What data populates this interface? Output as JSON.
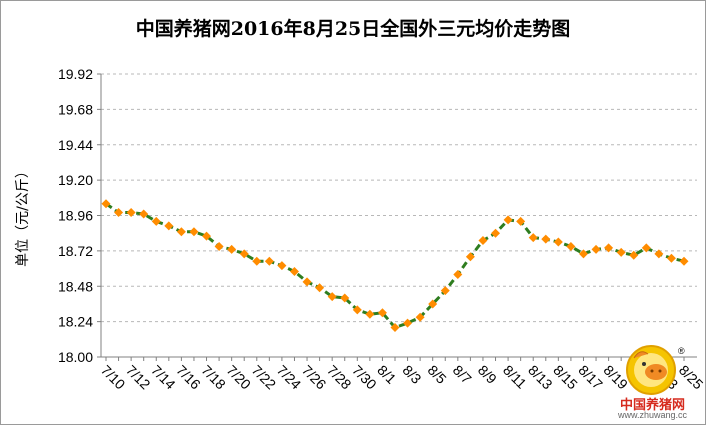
{
  "chart_data": {
    "type": "line",
    "title": "中国养猪网2016年8月25日全国外三元均价走势图",
    "ylabel": "单位（元/公斤）",
    "ylim": [
      18.0,
      19.92
    ],
    "yticks": [
      "18.00",
      "18.24",
      "18.48",
      "18.72",
      "18.96",
      "19.20",
      "19.44",
      "19.68",
      "19.92"
    ],
    "x_tick_labels": [
      "7/10",
      "7/12",
      "7/14",
      "7/16",
      "7/18",
      "7/20",
      "7/22",
      "7/24",
      "7/26",
      "7/28",
      "7/30",
      "8/1",
      "8/3",
      "8/5",
      "8/7",
      "8/9",
      "8/11",
      "8/13",
      "8/15",
      "8/17",
      "8/19",
      "8/21",
      "8/23",
      "8/25"
    ],
    "x": [
      "7/10",
      "7/11",
      "7/12",
      "7/13",
      "7/14",
      "7/15",
      "7/16",
      "7/17",
      "7/18",
      "7/19",
      "7/20",
      "7/21",
      "7/22",
      "7/23",
      "7/24",
      "7/25",
      "7/26",
      "7/27",
      "7/28",
      "7/29",
      "7/30",
      "7/31",
      "8/1",
      "8/2",
      "8/3",
      "8/4",
      "8/5",
      "8/6",
      "8/7",
      "8/8",
      "8/9",
      "8/10",
      "8/11",
      "8/12",
      "8/13",
      "8/14",
      "8/15",
      "8/16",
      "8/17",
      "8/18",
      "8/19",
      "8/20",
      "8/21",
      "8/22",
      "8/23",
      "8/24",
      "8/25"
    ],
    "series": [
      {
        "values": [
          19.04,
          18.98,
          18.98,
          18.97,
          18.92,
          18.89,
          18.85,
          18.85,
          18.82,
          18.75,
          18.73,
          18.7,
          18.65,
          18.65,
          18.62,
          18.58,
          18.51,
          18.47,
          18.41,
          18.4,
          18.32,
          18.29,
          18.3,
          18.2,
          18.23,
          18.27,
          18.36,
          18.45,
          18.56,
          18.68,
          18.79,
          18.84,
          18.93,
          18.92,
          18.81,
          18.8,
          18.78,
          18.75,
          18.7,
          18.73,
          18.74,
          18.71,
          18.69,
          18.74,
          18.7,
          18.67,
          18.65
        ],
        "line_color": "#2e7d1f",
        "marker_color": "#ff8c00"
      }
    ],
    "grid": "horizontal dashed"
  },
  "logo": {
    "name_text": "中国养猪网",
    "url_text": "www.zhuwang.cc",
    "registered_mark": "®"
  }
}
